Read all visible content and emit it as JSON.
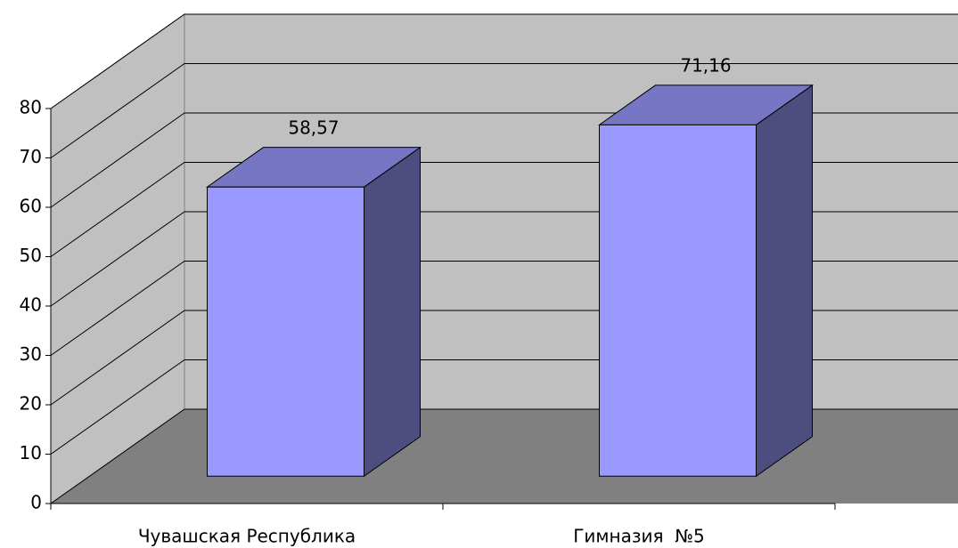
{
  "chart_data": {
    "type": "bar3d",
    "categories": [
      "Чувашская Республика",
      "Гимназия  №5"
    ],
    "values": [
      58.57,
      71.16
    ],
    "value_labels": [
      "58,57",
      "71,16"
    ],
    "color": "#9999ff",
    "ylim": [
      0,
      80
    ],
    "yticks": [
      0,
      10,
      20,
      30,
      40,
      50,
      60,
      70,
      80
    ],
    "grid": true
  }
}
